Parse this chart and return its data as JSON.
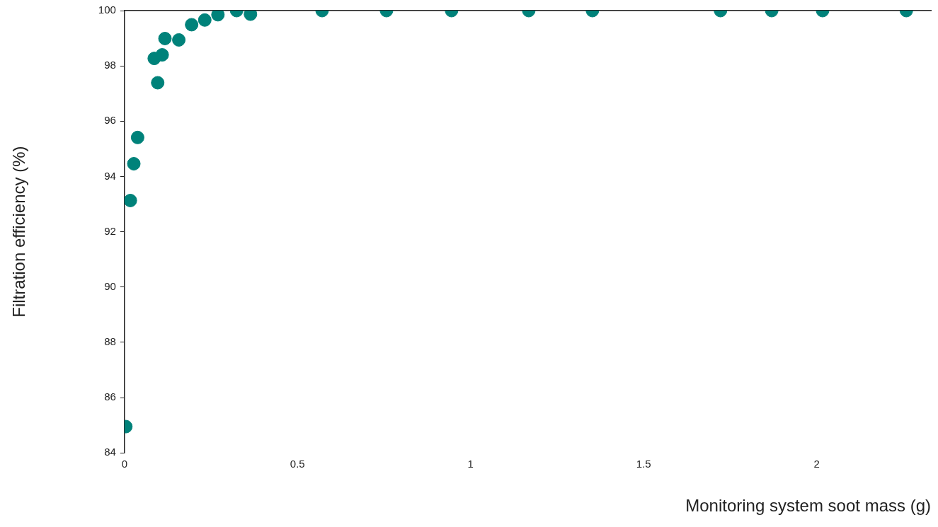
{
  "chart_data": {
    "type": "scatter",
    "xlabel": "Monitoring system soot mass (g)",
    "ylabel": "Filtration efficiency (%)",
    "x": [
      0.004,
      0.017,
      0.027,
      0.038,
      0.086,
      0.096,
      0.109,
      0.117,
      0.157,
      0.194,
      0.232,
      0.27,
      0.324,
      0.364,
      0.571,
      0.757,
      0.945,
      1.168,
      1.352,
      1.722,
      1.87,
      2.017,
      2.259
    ],
    "series": [
      {
        "color": "#00827a",
        "values": [
          84.95,
          93.13,
          94.46,
          95.41,
          98.27,
          97.39,
          98.4,
          98.99,
          98.94,
          99.49,
          99.66,
          99.85,
          100,
          99.87,
          100,
          100,
          100,
          100,
          100,
          100,
          100,
          100,
          100
        ]
      }
    ],
    "xlim": [
      0,
      2.33
    ],
    "xticks": [
      0,
      0.5,
      1,
      1.5,
      2
    ],
    "ylim": [
      84,
      100
    ],
    "yticks": [
      84,
      86,
      88,
      90,
      92,
      94,
      96,
      98,
      100
    ],
    "grid": false,
    "legend": false,
    "marker": "circle"
  }
}
